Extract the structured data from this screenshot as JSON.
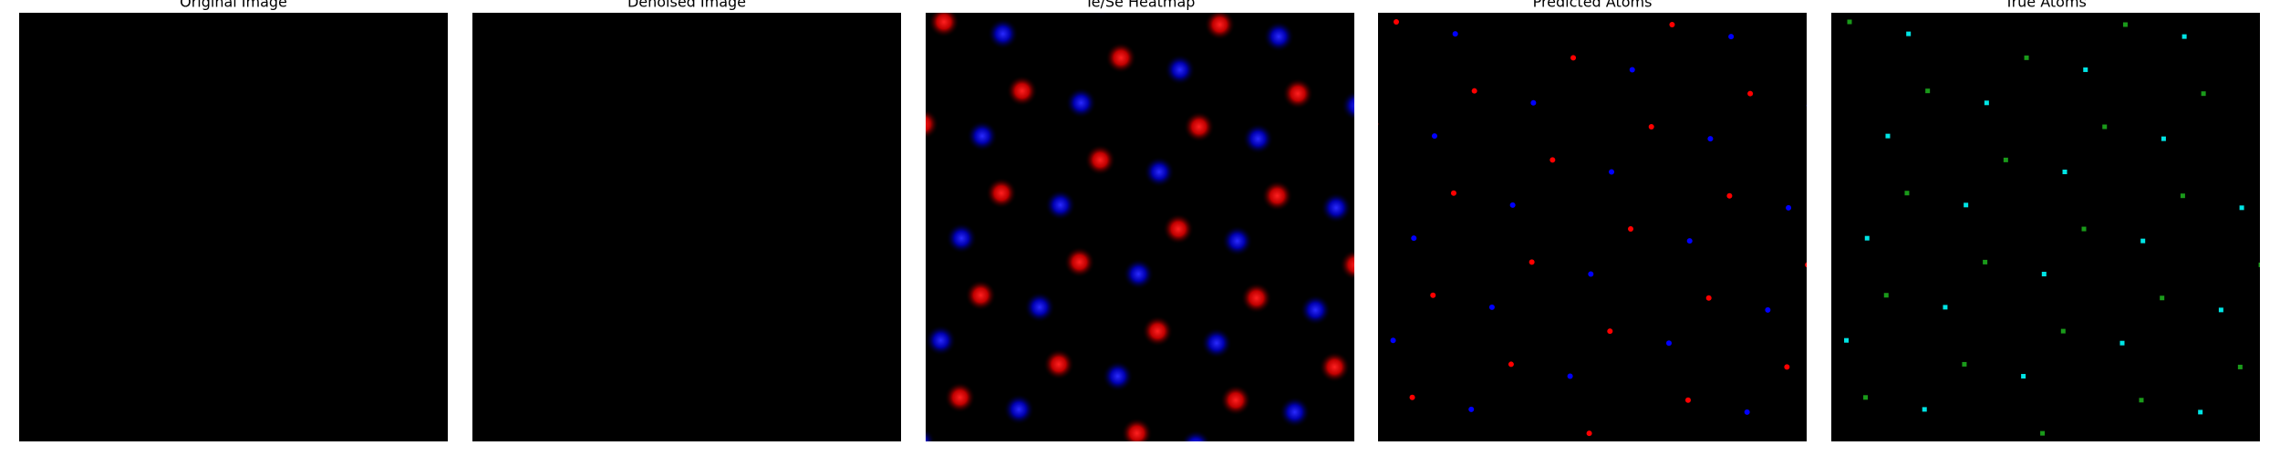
{
  "panels": [
    {
      "title": "Original Image"
    },
    {
      "title": "Denoised Image"
    },
    {
      "title": "Te/Se Heatmap"
    },
    {
      "title": "Predicted Atoms"
    },
    {
      "title": "True Atoms"
    }
  ]
}
